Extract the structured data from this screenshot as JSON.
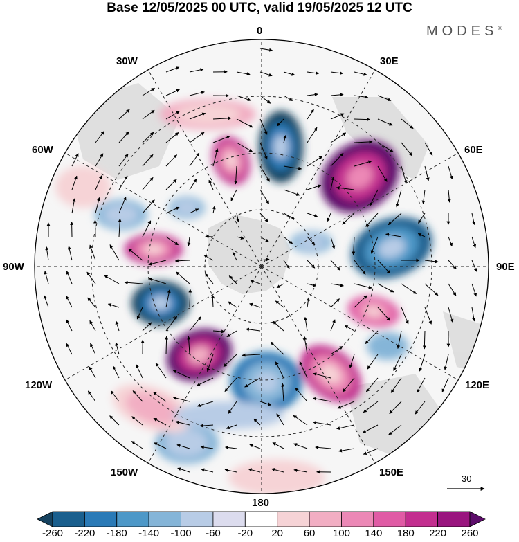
{
  "title": "Base 12/05/2025 00 UTC, valid 19/05/2025 12 UTC",
  "brand": "MODES",
  "brand_mark": "®",
  "meridians": {
    "top": "0",
    "bottom": "180",
    "left": "90W",
    "right": "90E",
    "upper_left_1": "30W",
    "upper_left_2": "60W",
    "upper_right_1": "30E",
    "upper_right_2": "60E",
    "lower_left_1": "120W",
    "lower_left_2": "150W",
    "lower_right_1": "120E",
    "lower_right_2": "150E"
  },
  "wind_reference": "30",
  "colorbar": {
    "ticks": [
      "-260",
      "-220",
      "-180",
      "-140",
      "-100",
      "-60",
      "-20",
      "20",
      "60",
      "100",
      "140",
      "180",
      "220",
      "260"
    ],
    "colors": [
      "#16425f",
      "#1a5f8e",
      "#2a7ab7",
      "#4d98c8",
      "#85b5d8",
      "#b8cce6",
      "#dcdcee",
      "#ffffff",
      "#f6d3d6",
      "#f2aec3",
      "#ec88b6",
      "#e05ba5",
      "#c32e8f",
      "#9a157f",
      "#5d0d6b"
    ]
  },
  "anomalies": [
    {
      "sign": "negative",
      "level": "strong",
      "region": "near 0/15E"
    },
    {
      "sign": "positive",
      "level": "very strong",
      "region": "45E-60E"
    },
    {
      "sign": "negative",
      "level": "strong",
      "region": "80E-100E"
    },
    {
      "sign": "positive",
      "level": "moderate",
      "region": "110E"
    },
    {
      "sign": "positive",
      "level": "strong",
      "region": "140E"
    },
    {
      "sign": "negative",
      "level": "strong",
      "region": "165E-180"
    },
    {
      "sign": "positive",
      "level": "very strong",
      "region": "130W"
    },
    {
      "sign": "negative",
      "level": "strong",
      "region": "105W"
    },
    {
      "sign": "positive",
      "level": "strong",
      "region": "85W"
    },
    {
      "sign": "positive",
      "level": "strong",
      "region": "30W"
    },
    {
      "sign": "negative",
      "level": "weak",
      "region": "50W-70W"
    }
  ]
}
